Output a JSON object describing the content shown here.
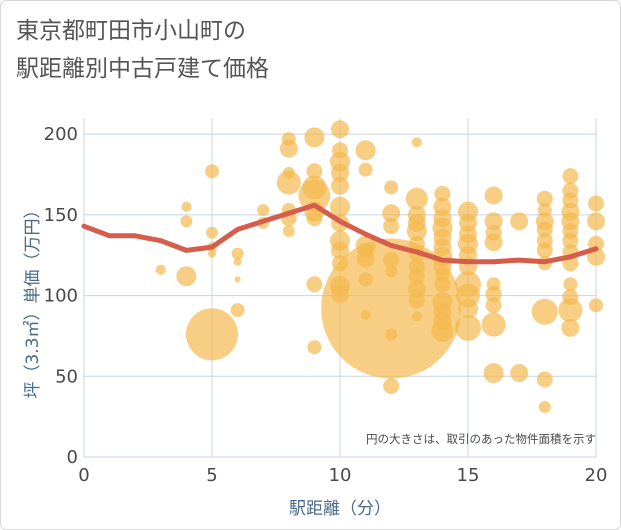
{
  "chart_data": {
    "type": "scatter",
    "title_lines": [
      "東京都町田市小山町の",
      "駅距離別中古戸建て価格"
    ],
    "xlabel": "駅距離（分）",
    "ylabel": "坪（3.3㎡）単価（万円）",
    "xlim": [
      0,
      20
    ],
    "ylim": [
      0,
      210
    ],
    "xticks": [
      0,
      5,
      10,
      15,
      20
    ],
    "yticks": [
      0,
      50,
      100,
      150,
      200
    ],
    "annotation": "円の大きさは、取引のあった物件面積を示す",
    "colors": {
      "bubble": "#f3b94f",
      "trend": "#d45d4c",
      "grid": "#c8d4e0",
      "axis_text": "#4a6a8a"
    },
    "bubbles": [
      {
        "x": 3,
        "y": 116,
        "s": 5
      },
      {
        "x": 4,
        "y": 155,
        "s": 5
      },
      {
        "x": 4,
        "y": 146,
        "s": 6
      },
      {
        "x": 4,
        "y": 112,
        "s": 10
      },
      {
        "x": 5,
        "y": 177,
        "s": 7
      },
      {
        "x": 5,
        "y": 139,
        "s": 6
      },
      {
        "x": 5,
        "y": 130,
        "s": 5
      },
      {
        "x": 5,
        "y": 126,
        "s": 4
      },
      {
        "x": 5,
        "y": 76,
        "s": 26
      },
      {
        "x": 6,
        "y": 126,
        "s": 6
      },
      {
        "x": 6,
        "y": 121,
        "s": 4
      },
      {
        "x": 6,
        "y": 110,
        "s": 3
      },
      {
        "x": 6,
        "y": 91,
        "s": 7
      },
      {
        "x": 7,
        "y": 153,
        "s": 6
      },
      {
        "x": 7,
        "y": 145,
        "s": 6
      },
      {
        "x": 8,
        "y": 197,
        "s": 7
      },
      {
        "x": 8,
        "y": 191,
        "s": 9
      },
      {
        "x": 8,
        "y": 176,
        "s": 6
      },
      {
        "x": 8,
        "y": 170,
        "s": 12
      },
      {
        "x": 8,
        "y": 153,
        "s": 7
      },
      {
        "x": 8,
        "y": 148,
        "s": 8
      },
      {
        "x": 8,
        "y": 140,
        "s": 6
      },
      {
        "x": 9,
        "y": 198,
        "s": 10
      },
      {
        "x": 9,
        "y": 177,
        "s": 8
      },
      {
        "x": 9,
        "y": 167,
        "s": 12
      },
      {
        "x": 9,
        "y": 162,
        "s": 16
      },
      {
        "x": 9,
        "y": 152,
        "s": 10
      },
      {
        "x": 9,
        "y": 148,
        "s": 8
      },
      {
        "x": 9,
        "y": 107,
        "s": 8
      },
      {
        "x": 9,
        "y": 68,
        "s": 7
      },
      {
        "x": 10,
        "y": 203,
        "s": 9
      },
      {
        "x": 10,
        "y": 190,
        "s": 8
      },
      {
        "x": 10,
        "y": 183,
        "s": 10
      },
      {
        "x": 10,
        "y": 176,
        "s": 9
      },
      {
        "x": 10,
        "y": 168,
        "s": 9
      },
      {
        "x": 10,
        "y": 155,
        "s": 10
      },
      {
        "x": 10,
        "y": 145,
        "s": 9
      },
      {
        "x": 10,
        "y": 134,
        "s": 10
      },
      {
        "x": 10,
        "y": 128,
        "s": 9
      },
      {
        "x": 10,
        "y": 120,
        "s": 8
      },
      {
        "x": 10,
        "y": 106,
        "s": 10
      },
      {
        "x": 10,
        "y": 101,
        "s": 9
      },
      {
        "x": 11,
        "y": 190,
        "s": 10
      },
      {
        "x": 11,
        "y": 178,
        "s": 7
      },
      {
        "x": 11,
        "y": 131,
        "s": 10
      },
      {
        "x": 11,
        "y": 128,
        "s": 8
      },
      {
        "x": 11,
        "y": 123,
        "s": 9
      },
      {
        "x": 11,
        "y": 110,
        "s": 7
      },
      {
        "x": 11,
        "y": 88,
        "s": 5
      },
      {
        "x": 12,
        "y": 92,
        "s": 70
      },
      {
        "x": 12,
        "y": 167,
        "s": 7
      },
      {
        "x": 12,
        "y": 151,
        "s": 9
      },
      {
        "x": 12,
        "y": 143,
        "s": 8
      },
      {
        "x": 12,
        "y": 122,
        "s": 8
      },
      {
        "x": 12,
        "y": 115,
        "s": 6
      },
      {
        "x": 12,
        "y": 76,
        "s": 6
      },
      {
        "x": 12,
        "y": 44,
        "s": 8
      },
      {
        "x": 13,
        "y": 195,
        "s": 5
      },
      {
        "x": 13,
        "y": 160,
        "s": 11
      },
      {
        "x": 13,
        "y": 150,
        "s": 9
      },
      {
        "x": 13,
        "y": 145,
        "s": 9
      },
      {
        "x": 13,
        "y": 140,
        "s": 10
      },
      {
        "x": 13,
        "y": 132,
        "s": 8
      },
      {
        "x": 13,
        "y": 126,
        "s": 8
      },
      {
        "x": 13,
        "y": 118,
        "s": 8
      },
      {
        "x": 13,
        "y": 112,
        "s": 8
      },
      {
        "x": 13,
        "y": 104,
        "s": 9
      },
      {
        "x": 13,
        "y": 97,
        "s": 8
      },
      {
        "x": 13,
        "y": 87,
        "s": 5
      },
      {
        "x": 14,
        "y": 163,
        "s": 8
      },
      {
        "x": 14,
        "y": 155,
        "s": 9
      },
      {
        "x": 14,
        "y": 148,
        "s": 9
      },
      {
        "x": 14,
        "y": 142,
        "s": 10
      },
      {
        "x": 14,
        "y": 136,
        "s": 9
      },
      {
        "x": 14,
        "y": 130,
        "s": 9
      },
      {
        "x": 14,
        "y": 124,
        "s": 10
      },
      {
        "x": 14,
        "y": 118,
        "s": 9
      },
      {
        "x": 14,
        "y": 113,
        "s": 7
      },
      {
        "x": 14,
        "y": 107,
        "s": 8
      },
      {
        "x": 14,
        "y": 96,
        "s": 10
      },
      {
        "x": 14,
        "y": 90,
        "s": 9
      },
      {
        "x": 14,
        "y": 84,
        "s": 9
      },
      {
        "x": 14,
        "y": 78,
        "s": 11
      },
      {
        "x": 15,
        "y": 152,
        "s": 10
      },
      {
        "x": 15,
        "y": 145,
        "s": 9
      },
      {
        "x": 15,
        "y": 138,
        "s": 9
      },
      {
        "x": 15,
        "y": 132,
        "s": 10
      },
      {
        "x": 15,
        "y": 125,
        "s": 9
      },
      {
        "x": 15,
        "y": 118,
        "s": 9
      },
      {
        "x": 15,
        "y": 107,
        "s": 13
      },
      {
        "x": 15,
        "y": 100,
        "s": 12
      },
      {
        "x": 15,
        "y": 92,
        "s": 10
      },
      {
        "x": 15,
        "y": 80,
        "s": 13
      },
      {
        "x": 16,
        "y": 162,
        "s": 9
      },
      {
        "x": 16,
        "y": 146,
        "s": 9
      },
      {
        "x": 16,
        "y": 139,
        "s": 8
      },
      {
        "x": 16,
        "y": 133,
        "s": 9
      },
      {
        "x": 16,
        "y": 107,
        "s": 7
      },
      {
        "x": 16,
        "y": 101,
        "s": 8
      },
      {
        "x": 16,
        "y": 94,
        "s": 8
      },
      {
        "x": 16,
        "y": 82,
        "s": 12
      },
      {
        "x": 16,
        "y": 52,
        "s": 10
      },
      {
        "x": 17,
        "y": 146,
        "s": 9
      },
      {
        "x": 17,
        "y": 52,
        "s": 9
      },
      {
        "x": 18,
        "y": 160,
        "s": 8
      },
      {
        "x": 18,
        "y": 153,
        "s": 7
      },
      {
        "x": 18,
        "y": 146,
        "s": 9
      },
      {
        "x": 18,
        "y": 141,
        "s": 8
      },
      {
        "x": 18,
        "y": 134,
        "s": 8
      },
      {
        "x": 18,
        "y": 128,
        "s": 8
      },
      {
        "x": 18,
        "y": 120,
        "s": 7
      },
      {
        "x": 18,
        "y": 90,
        "s": 13
      },
      {
        "x": 18,
        "y": 48,
        "s": 8
      },
      {
        "x": 18,
        "y": 31,
        "s": 6
      },
      {
        "x": 19,
        "y": 174,
        "s": 8
      },
      {
        "x": 19,
        "y": 165,
        "s": 8
      },
      {
        "x": 19,
        "y": 159,
        "s": 8
      },
      {
        "x": 19,
        "y": 152,
        "s": 9
      },
      {
        "x": 19,
        "y": 146,
        "s": 9
      },
      {
        "x": 19,
        "y": 140,
        "s": 8
      },
      {
        "x": 19,
        "y": 134,
        "s": 8
      },
      {
        "x": 19,
        "y": 127,
        "s": 8
      },
      {
        "x": 19,
        "y": 120,
        "s": 8
      },
      {
        "x": 19,
        "y": 107,
        "s": 7
      },
      {
        "x": 19,
        "y": 99,
        "s": 8
      },
      {
        "x": 19,
        "y": 91,
        "s": 12
      },
      {
        "x": 19,
        "y": 80,
        "s": 9
      },
      {
        "x": 20,
        "y": 157,
        "s": 8
      },
      {
        "x": 20,
        "y": 146,
        "s": 9
      },
      {
        "x": 20,
        "y": 132,
        "s": 8
      },
      {
        "x": 20,
        "y": 124,
        "s": 9
      },
      {
        "x": 20,
        "y": 94,
        "s": 7
      }
    ],
    "trend": {
      "x": [
        0,
        1,
        2,
        3,
        4,
        5,
        6,
        7,
        8,
        9,
        10,
        11,
        12,
        13,
        14,
        15,
        16,
        17,
        18,
        19,
        20
      ],
      "y": [
        143,
        137,
        137,
        134,
        128,
        130,
        141,
        146,
        151,
        156,
        146,
        138,
        131,
        127,
        122,
        121,
        121,
        122,
        121,
        124,
        129
      ]
    }
  }
}
